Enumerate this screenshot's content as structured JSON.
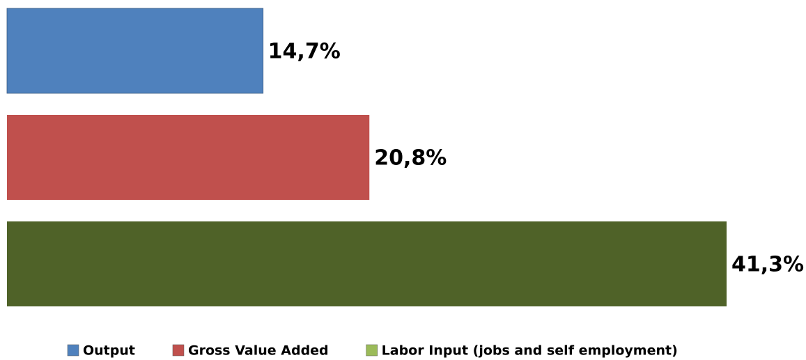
{
  "chart_data": {
    "type": "bar",
    "orientation": "horizontal",
    "legend": "bottom",
    "series": [
      {
        "name": "Output",
        "color": "#4f81bd",
        "values": [
          14.7
        ],
        "value_labels": [
          "14,7%"
        ]
      },
      {
        "name": "Gross Value Added",
        "color": "#c0504d",
        "values": [
          20.8
        ],
        "value_labels": [
          "20,8%"
        ]
      },
      {
        "name": "Labor Input (jobs and self employment)",
        "color": "#4f6228",
        "legend_color": "#9bbb59",
        "values": [
          41.3
        ],
        "value_labels": [
          "41,3%"
        ]
      }
    ]
  }
}
